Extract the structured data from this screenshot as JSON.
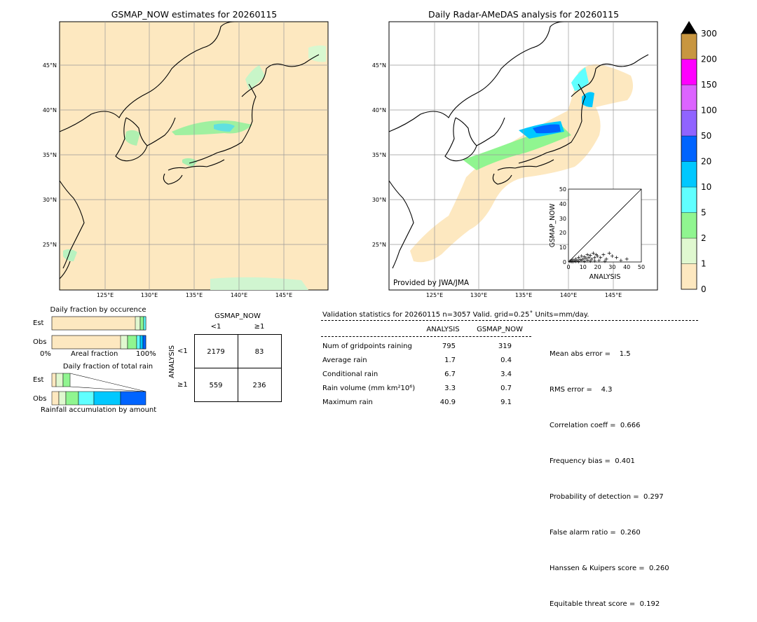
{
  "left_map": {
    "title": "GSMAP_NOW estimates for 20260115",
    "lat_ticks": [
      "45°N",
      "40°N",
      "35°N",
      "30°N",
      "25°N"
    ],
    "lon_ticks": [
      "125°E",
      "130°E",
      "135°E",
      "140°E",
      "145°E"
    ]
  },
  "right_map": {
    "title": "Daily Radar-AMeDAS analysis for 20260115",
    "lat_ticks": [
      "45°N",
      "40°N",
      "35°N",
      "30°N",
      "25°N"
    ],
    "lon_ticks": [
      "125°E",
      "130°E",
      "135°E",
      "140°E",
      "145°E"
    ],
    "provider": "Provided by JWA/JMA"
  },
  "colorbar": {
    "levels": [
      "0",
      "1",
      "2",
      "5",
      "10",
      "20",
      "50",
      "100",
      "150",
      "200",
      "300"
    ],
    "colors": [
      "#fde8c0",
      "#e0f8d0",
      "#90f590",
      "#60ffff",
      "#00c8ff",
      "#0064ff",
      "#9064ff",
      "#dc64ff",
      "#ff00ff",
      "#c89640",
      "#000000"
    ]
  },
  "scatter_inset": {
    "xlabel": "ANALYSIS",
    "ylabel": "GSMAP_NOW",
    "x_ticks": [
      "0",
      "10",
      "20",
      "30",
      "40",
      "50"
    ],
    "y_ticks": [
      "0",
      "10",
      "20",
      "30",
      "40",
      "50"
    ]
  },
  "fraction_occurrence": {
    "title": "Daily fraction by occurence",
    "row_labels": [
      "Est",
      "Obs"
    ],
    "axis_left": "0%",
    "axis_mid": "Areal fraction",
    "axis_right": "100%"
  },
  "fraction_rain": {
    "title": "Daily fraction of total rain",
    "row_labels": [
      "Est",
      "Obs"
    ],
    "footer": "Rainfall accumulation by amount"
  },
  "contingency": {
    "col_title": "GSMAP_NOW",
    "col_labels": [
      "<1",
      "≥1"
    ],
    "row_title": "ANALYSIS",
    "row_labels": [
      "<1",
      "≥1"
    ],
    "cells": [
      [
        "2179",
        "83"
      ],
      [
        "559",
        "236"
      ]
    ]
  },
  "validation": {
    "header": "Validation statistics for 20260115  n=3057 Valid. grid=0.25˚ Units=mm/day.",
    "col_analysis": "ANALYSIS",
    "col_gsmap": "GSMAP_NOW",
    "rows": [
      {
        "label": "Num of gridpoints raining",
        "analysis": "795",
        "gsmap": "319"
      },
      {
        "label": "Average rain",
        "analysis": "1.7",
        "gsmap": "0.4"
      },
      {
        "label": "Conditional rain",
        "analysis": "6.7",
        "gsmap": "3.4"
      },
      {
        "label": "Rain volume (mm km²10⁶)",
        "analysis": "3.3",
        "gsmap": "0.7"
      },
      {
        "label": "Maximum rain",
        "analysis": "40.9",
        "gsmap": "9.1"
      }
    ],
    "scores": [
      "Mean abs error =    1.5",
      "RMS error =    4.3",
      "Correlation coeff =  0.666",
      "Frequency bias =  0.401",
      "Probability of detection =  0.297",
      "False alarm ratio =  0.260",
      "Hanssen & Kuipers score =  0.260",
      "Equitable threat score =  0.192"
    ]
  },
  "chart_data": {
    "type": "scatter",
    "xlabel": "ANALYSIS",
    "ylabel": "GSMAP_NOW",
    "xlim": [
      0,
      50
    ],
    "ylim": [
      0,
      50
    ],
    "series": [
      {
        "x": [
          1,
          2,
          2,
          3,
          4,
          5,
          6,
          7,
          8,
          9,
          10,
          11,
          12,
          13,
          14,
          15,
          16,
          17,
          18,
          19,
          20,
          22,
          24,
          26,
          28,
          30,
          33,
          36,
          40,
          3,
          5,
          7,
          9,
          11,
          13,
          15,
          18,
          21,
          25
        ],
        "y": [
          0.5,
          1,
          0.3,
          1.5,
          0.8,
          2,
          1,
          3,
          1.5,
          4,
          2,
          3.5,
          2.5,
          5,
          3,
          4.5,
          2,
          6,
          3,
          5,
          4,
          3,
          5,
          2,
          6,
          4,
          3,
          1,
          2,
          0.2,
          0.5,
          0.3,
          1,
          0.4,
          1.2,
          0.6,
          0.8,
          1,
          0.5
        ]
      }
    ]
  }
}
